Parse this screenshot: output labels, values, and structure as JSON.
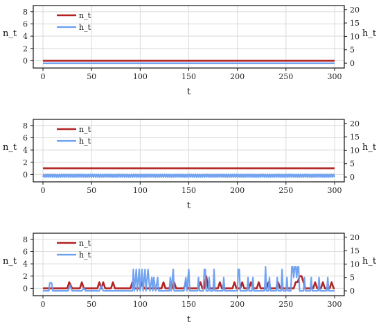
{
  "chart_data": [
    {
      "type": "line",
      "xlabel": "t",
      "ylabel_left": "n_t",
      "ylabel_right": "h_t",
      "xlim": [
        -10,
        310
      ],
      "ylim_left": [
        -1.2,
        9
      ],
      "ylim_right": [
        -1.8,
        21.5
      ],
      "xticks": [
        0,
        50,
        100,
        150,
        200,
        250,
        300
      ],
      "yticks_left": [
        0,
        2,
        4,
        6,
        8
      ],
      "yticks_right": [
        0,
        5,
        10,
        15,
        20
      ],
      "grid": true,
      "legend_placement": "upper-left",
      "series": [
        {
          "name": "n_t",
          "axis": "left",
          "color": "#b22222",
          "mode": "constant",
          "value": 0
        },
        {
          "name": "h_t",
          "axis": "right",
          "color": "#6a9ef0",
          "mode": "constant",
          "value": 0
        }
      ]
    },
    {
      "type": "line",
      "xlabel": "t",
      "ylabel_left": "n_t",
      "ylabel_right": "h_t",
      "xlim": [
        -10,
        310
      ],
      "ylim_left": [
        -1.2,
        9
      ],
      "ylim_right": [
        -1.8,
        21.5
      ],
      "xticks": [
        0,
        50,
        100,
        150,
        200,
        250,
        300
      ],
      "yticks_left": [
        0,
        2,
        4,
        6,
        8
      ],
      "yticks_right": [
        0,
        5,
        10,
        15,
        20
      ],
      "grid": true,
      "legend_placement": "upper-left",
      "series": [
        {
          "name": "n_t",
          "axis": "left",
          "color": "#b22222",
          "mode": "constant",
          "value": 1
        },
        {
          "name": "h_t",
          "axis": "right",
          "color": "#6a9ef0",
          "mode": "alternating",
          "values": [
            0,
            1
          ]
        }
      ]
    },
    {
      "type": "line",
      "xlabel": "t",
      "ylabel_left": "n_t",
      "ylabel_right": "h_t",
      "xlim": [
        -10,
        310
      ],
      "ylim_left": [
        -1.2,
        9
      ],
      "ylim_right": [
        -1.8,
        21.5
      ],
      "xticks": [
        0,
        50,
        100,
        150,
        200,
        250,
        300
      ],
      "yticks_left": [
        0,
        2,
        4,
        6,
        8
      ],
      "yticks_right": [
        0,
        5,
        10,
        15,
        20
      ],
      "grid": true,
      "legend_placement": "upper-left",
      "series": [
        {
          "name": "n_t",
          "axis": "left",
          "color": "#b22222",
          "mode": "points",
          "points": [
            [
              0,
              0
            ],
            [
              25,
              0
            ],
            [
              27,
              1
            ],
            [
              30,
              0
            ],
            [
              38,
              0
            ],
            [
              40,
              1
            ],
            [
              42,
              0
            ],
            [
              56,
              0
            ],
            [
              58,
              1
            ],
            [
              60,
              0
            ],
            [
              62,
              1
            ],
            [
              64,
              0
            ],
            [
              70,
              0
            ],
            [
              72,
              1
            ],
            [
              74,
              0
            ],
            [
              90,
              0
            ],
            [
              92,
              1
            ],
            [
              94,
              0
            ],
            [
              100,
              0
            ],
            [
              102,
              1
            ],
            [
              104,
              0
            ],
            [
              122,
              0
            ],
            [
              124,
              1
            ],
            [
              126,
              0
            ],
            [
              130,
              0
            ],
            [
              132,
              1
            ],
            [
              134,
              0
            ],
            [
              135,
              1
            ],
            [
              137,
              0
            ],
            [
              145,
              0
            ],
            [
              147,
              1
            ],
            [
              149,
              0
            ],
            [
              160,
              0
            ],
            [
              162,
              1
            ],
            [
              164,
              0
            ],
            [
              166,
              0
            ],
            [
              168,
              2
            ],
            [
              170,
              0
            ],
            [
              180,
              0
            ],
            [
              182,
              1
            ],
            [
              184,
              0
            ],
            [
              195,
              0
            ],
            [
              197,
              1
            ],
            [
              199,
              0
            ],
            [
              203,
              0
            ],
            [
              205,
              1
            ],
            [
              207,
              0
            ],
            [
              212,
              0
            ],
            [
              214,
              1
            ],
            [
              216,
              0
            ],
            [
              220,
              0
            ],
            [
              222,
              1
            ],
            [
              224,
              0
            ],
            [
              230,
              0
            ],
            [
              232,
              1
            ],
            [
              234,
              0
            ],
            [
              240,
              0
            ],
            [
              242,
              1
            ],
            [
              244,
              0
            ],
            [
              258,
              0
            ],
            [
              260,
              1
            ],
            [
              262,
              1
            ],
            [
              264,
              2
            ],
            [
              266,
              2
            ],
            [
              268,
              1
            ],
            [
              270,
              0
            ],
            [
              278,
              0
            ],
            [
              280,
              1
            ],
            [
              282,
              0
            ],
            [
              286,
              0
            ],
            [
              288,
              1
            ],
            [
              290,
              0
            ],
            [
              295,
              0
            ],
            [
              297,
              1
            ],
            [
              299,
              0
            ],
            [
              300,
              0
            ]
          ]
        },
        {
          "name": "h_t",
          "axis": "right",
          "color": "#6a9ef0",
          "mode": "points",
          "points": [
            [
              0,
              0
            ],
            [
              6,
              0
            ],
            [
              7,
              3
            ],
            [
              9,
              3
            ],
            [
              10,
              0
            ],
            [
              14,
              0
            ],
            [
              22,
              0
            ],
            [
              26,
              0
            ],
            [
              28,
              2
            ],
            [
              30,
              0
            ],
            [
              40,
              0
            ],
            [
              42,
              1
            ],
            [
              44,
              0
            ],
            [
              58,
              0
            ],
            [
              60,
              2
            ],
            [
              62,
              0
            ],
            [
              92,
              0
            ],
            [
              93,
              8
            ],
            [
              94,
              0
            ],
            [
              96,
              8
            ],
            [
              97,
              0
            ],
            [
              99,
              8
            ],
            [
              100,
              0
            ],
            [
              102,
              8
            ],
            [
              103,
              0
            ],
            [
              105,
              8
            ],
            [
              106,
              0
            ],
            [
              108,
              8
            ],
            [
              110,
              0
            ],
            [
              112,
              5
            ],
            [
              113,
              0
            ],
            [
              114,
              5
            ],
            [
              116,
              0
            ],
            [
              118,
              5
            ],
            [
              119,
              0
            ],
            [
              130,
              0
            ],
            [
              131,
              5
            ],
            [
              132,
              0
            ],
            [
              134,
              8
            ],
            [
              135,
              0
            ],
            [
              145,
              0
            ],
            [
              147,
              5
            ],
            [
              148,
              0
            ],
            [
              150,
              8
            ],
            [
              151,
              0
            ],
            [
              159,
              0
            ],
            [
              160,
              5
            ],
            [
              161,
              0
            ],
            [
              165,
              0
            ],
            [
              166,
              8
            ],
            [
              167,
              8
            ],
            [
              168,
              0
            ],
            [
              170,
              0
            ],
            [
              171,
              5
            ],
            [
              172,
              0
            ],
            [
              175,
              0
            ],
            [
              176,
              8
            ],
            [
              177,
              0
            ],
            [
              185,
              0
            ],
            [
              186,
              5
            ],
            [
              187,
              0
            ],
            [
              200,
              0
            ],
            [
              201,
              8
            ],
            [
              202,
              8
            ],
            [
              203,
              0
            ],
            [
              210,
              0
            ],
            [
              211,
              5
            ],
            [
              212,
              0
            ],
            [
              215,
              0
            ],
            [
              216,
              5
            ],
            [
              217,
              0
            ],
            [
              228,
              0
            ],
            [
              229,
              9
            ],
            [
              230,
              0
            ],
            [
              232,
              0
            ],
            [
              233,
              5
            ],
            [
              234,
              0
            ],
            [
              240,
              0
            ],
            [
              241,
              5
            ],
            [
              242,
              0
            ],
            [
              245,
              0
            ],
            [
              246,
              8
            ],
            [
              247,
              0
            ],
            [
              250,
              0
            ],
            [
              251,
              5
            ],
            [
              252,
              0
            ],
            [
              255,
              0
            ],
            [
              256,
              9
            ],
            [
              257,
              9
            ],
            [
              258,
              5
            ],
            [
              259,
              9
            ],
            [
              260,
              9
            ],
            [
              261,
              5
            ],
            [
              262,
              9
            ],
            [
              263,
              9
            ],
            [
              264,
              0
            ],
            [
              268,
              0
            ],
            [
              269,
              5
            ],
            [
              270,
              0
            ],
            [
              275,
              0
            ],
            [
              276,
              5
            ],
            [
              277,
              0
            ],
            [
              283,
              0
            ],
            [
              284,
              5
            ],
            [
              285,
              0
            ],
            [
              292,
              0
            ],
            [
              293,
              5
            ],
            [
              294,
              0
            ],
            [
              300,
              0
            ]
          ]
        }
      ]
    }
  ]
}
